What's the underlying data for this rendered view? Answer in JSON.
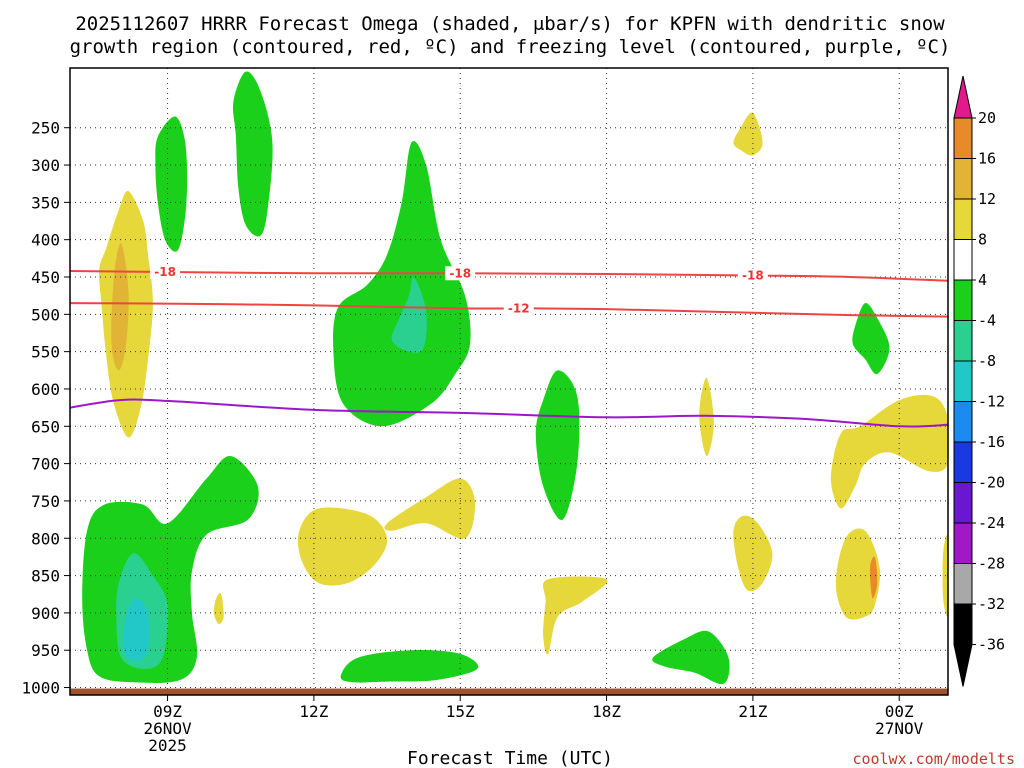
{
  "chart_data": {
    "type": "contour",
    "title_line1": "2025112607 HRRR Forecast Omega (shaded, μbar/s) for KPFN with dendritic snow",
    "title_line2": "growth region (contoured, red, ºC) and freezing level (contoured, purple, ºC)",
    "xlabel": "Forecast Time (UTC)",
    "credit": "coolwx.com/modelts",
    "x_unit": "hours since 26NOV 07Z",
    "xlim": [
      7,
      25
    ],
    "x_ticks": [
      {
        "x": 9,
        "line1": "09Z",
        "line2": "26NOV",
        "line3": "2025"
      },
      {
        "x": 12,
        "line1": "12Z",
        "line2": "",
        "line3": ""
      },
      {
        "x": 15,
        "line1": "15Z",
        "line2": "",
        "line3": ""
      },
      {
        "x": 18,
        "line1": "18Z",
        "line2": "",
        "line3": ""
      },
      {
        "x": 21,
        "line1": "21Z",
        "line2": "",
        "line3": ""
      },
      {
        "x": 24,
        "line1": "00Z",
        "line2": "27NOV",
        "line3": ""
      }
    ],
    "y_unit": "pressure (mb)",
    "ylim": [
      1010,
      170
    ],
    "y_ticks": [
      250,
      300,
      350,
      400,
      450,
      500,
      550,
      600,
      650,
      700,
      750,
      800,
      850,
      900,
      950,
      1000
    ],
    "colorbar": {
      "levels": [
        {
          "label": "20",
          "color": "#ee3333"
        },
        {
          "label": "16",
          "color": "#e88a2a"
        },
        {
          "label": "12",
          "color": "#e2b436"
        },
        {
          "label": "8",
          "color": "#e6d83a"
        },
        {
          "label": "4",
          "color": "#ffffff"
        },
        {
          "label": "-4",
          "color": "#1ad01a"
        },
        {
          "label": "-8",
          "color": "#2ad08f"
        },
        {
          "label": "-12",
          "color": "#22c8c8"
        },
        {
          "label": "-16",
          "color": "#1a8cf0"
        },
        {
          "label": "-20",
          "color": "#1a3ae0"
        },
        {
          "label": "-24",
          "color": "#6a18d0"
        },
        {
          "label": "-28",
          "color": "#a018c8"
        },
        {
          "label": "-32",
          "color": "#a8a8a8"
        },
        {
          "label": "-36",
          "color": ""
        }
      ],
      "top_color": "#e01a8a",
      "bottom_color": "#000000"
    },
    "contours": [
      {
        "name": "dgz-minus18",
        "label": "-18",
        "color": "#ee4444",
        "points": [
          [
            7,
            442
          ],
          [
            8.5,
            443
          ],
          [
            12,
            445
          ],
          [
            15,
            445
          ],
          [
            18,
            446
          ],
          [
            21,
            448
          ],
          [
            23,
            450
          ],
          [
            25,
            455
          ]
        ],
        "label_x": [
          8.95,
          15.0,
          21.0
        ]
      },
      {
        "name": "dgz-minus12",
        "label": "-12",
        "color": "#ee4444",
        "points": [
          [
            7,
            485
          ],
          [
            9.5,
            486
          ],
          [
            12,
            488
          ],
          [
            15,
            492
          ],
          [
            16.5,
            492
          ],
          [
            18,
            493
          ],
          [
            21,
            498
          ],
          [
            23,
            501
          ],
          [
            25,
            503
          ]
        ],
        "label_x": [
          16.2
        ]
      },
      {
        "name": "freezing-level",
        "label": "",
        "color": "#9a18c8",
        "points": [
          [
            7,
            625
          ],
          [
            8,
            615
          ],
          [
            9,
            616
          ],
          [
            12,
            628
          ],
          [
            15,
            632
          ],
          [
            18,
            638
          ],
          [
            20,
            636
          ],
          [
            22,
            640
          ],
          [
            24,
            650
          ],
          [
            25,
            648
          ]
        ],
        "label_x": []
      }
    ],
    "regions": [
      {
        "name": "green-09z-upper",
        "color": "#1ad01a",
        "points": [
          [
            8.8,
            262
          ],
          [
            9.15,
            235
          ],
          [
            9.35,
            265
          ],
          [
            9.4,
            320
          ],
          [
            9.35,
            375
          ],
          [
            9.2,
            415
          ],
          [
            8.95,
            400
          ],
          [
            8.8,
            350
          ],
          [
            8.75,
            300
          ]
        ]
      },
      {
        "name": "green-1030-upper",
        "color": "#1ad01a",
        "points": [
          [
            10.35,
            215
          ],
          [
            10.6,
            175
          ],
          [
            10.9,
            200
          ],
          [
            11.15,
            270
          ],
          [
            11.05,
            360
          ],
          [
            10.9,
            395
          ],
          [
            10.6,
            380
          ],
          [
            10.45,
            330
          ],
          [
            10.4,
            260
          ]
        ]
      },
      {
        "name": "green-14z-core",
        "color": "#1ad01a",
        "points": [
          [
            14,
            270
          ],
          [
            14.3,
            300
          ],
          [
            14.6,
            400
          ],
          [
            15.1,
            475
          ],
          [
            15.2,
            540
          ],
          [
            14.9,
            580
          ],
          [
            14.4,
            620
          ],
          [
            13.4,
            650
          ],
          [
            12.6,
            620
          ],
          [
            12.4,
            550
          ],
          [
            12.5,
            490
          ],
          [
            13.1,
            460
          ],
          [
            13.5,
            420
          ],
          [
            13.8,
            350
          ]
        ]
      },
      {
        "name": "green-17z",
        "color": "#1ad01a",
        "points": [
          [
            16.7,
            615
          ],
          [
            17,
            575
          ],
          [
            17.4,
            610
          ],
          [
            17.4,
            700
          ],
          [
            17.1,
            775
          ],
          [
            16.7,
            730
          ],
          [
            16.55,
            660
          ]
        ]
      },
      {
        "name": "green-09z-low",
        "color": "#1ad01a",
        "points": [
          [
            7.35,
            790
          ],
          [
            7.7,
            755
          ],
          [
            8.5,
            755
          ],
          [
            9,
            780
          ],
          [
            9.8,
            720
          ],
          [
            10.3,
            690
          ],
          [
            10.85,
            730
          ],
          [
            10.65,
            775
          ],
          [
            9.8,
            795
          ],
          [
            9.5,
            845
          ],
          [
            9.5,
            900
          ],
          [
            9.6,
            960
          ],
          [
            9.25,
            990
          ],
          [
            8.3,
            993
          ],
          [
            7.6,
            985
          ],
          [
            7.35,
            950
          ],
          [
            7.25,
            880
          ]
        ]
      },
      {
        "name": "green-14z-low",
        "color": "#1ad01a",
        "points": [
          [
            12.55,
            985
          ],
          [
            12.9,
            960
          ],
          [
            14,
            950
          ],
          [
            15,
            955
          ],
          [
            15.35,
            975
          ],
          [
            14.5,
            990
          ],
          [
            13.5,
            992
          ],
          [
            12.8,
            993
          ]
        ]
      },
      {
        "name": "green-20z-low",
        "color": "#1ad01a",
        "points": [
          [
            18.95,
            960
          ],
          [
            19.6,
            935
          ],
          [
            20.1,
            925
          ],
          [
            20.5,
            960
          ],
          [
            20.4,
            995
          ],
          [
            19.8,
            980
          ],
          [
            19.2,
            972
          ]
        ]
      },
      {
        "name": "green-2330",
        "color": "#1ad01a",
        "points": [
          [
            23.3,
            485
          ],
          [
            23.55,
            505
          ],
          [
            23.8,
            545
          ],
          [
            23.55,
            580
          ],
          [
            23.3,
            560
          ],
          [
            23.05,
            540
          ],
          [
            23.1,
            515
          ]
        ]
      },
      {
        "name": "teal-14z",
        "color": "#2ad08f",
        "points": [
          [
            13.95,
            475
          ],
          [
            14.05,
            450
          ],
          [
            14.3,
            495
          ],
          [
            14.25,
            545
          ],
          [
            13.95,
            550
          ],
          [
            13.6,
            535
          ],
          [
            13.75,
            505
          ]
        ]
      },
      {
        "name": "teal-09z-low",
        "color": "#2ad08f",
        "points": [
          [
            8.0,
            860
          ],
          [
            8.3,
            820
          ],
          [
            8.7,
            850
          ],
          [
            9.0,
            890
          ],
          [
            8.9,
            960
          ],
          [
            8.5,
            975
          ],
          [
            8.05,
            960
          ],
          [
            7.95,
            910
          ]
        ]
      },
      {
        "name": "cyan-09z-low",
        "color": "#22c8c8",
        "points": [
          [
            8.15,
            905
          ],
          [
            8.35,
            880
          ],
          [
            8.6,
            900
          ],
          [
            8.6,
            950
          ],
          [
            8.35,
            965
          ],
          [
            8.1,
            950
          ]
        ]
      },
      {
        "name": "yellow-08z",
        "color": "#e6d83a",
        "points": [
          [
            7.75,
            410
          ],
          [
            8.0,
            360
          ],
          [
            8.2,
            335
          ],
          [
            8.5,
            375
          ],
          [
            8.6,
            420
          ],
          [
            8.7,
            485
          ],
          [
            8.6,
            560
          ],
          [
            8.45,
            625
          ],
          [
            8.2,
            665
          ],
          [
            7.9,
            620
          ],
          [
            7.75,
            560
          ],
          [
            7.65,
            490
          ],
          [
            7.6,
            440
          ]
        ]
      },
      {
        "name": "orange-08z",
        "color": "#e2b436",
        "points": [
          [
            7.9,
            450
          ],
          [
            8.05,
            405
          ],
          [
            8.2,
            470
          ],
          [
            8.15,
            540
          ],
          [
            8.0,
            575
          ],
          [
            7.85,
            540
          ]
        ]
      },
      {
        "name": "yellow-21z-upper",
        "color": "#e6d83a",
        "points": [
          [
            20.6,
            270
          ],
          [
            20.75,
            250
          ],
          [
            21,
            230
          ],
          [
            21.2,
            270
          ],
          [
            21,
            287
          ],
          [
            20.75,
            280
          ]
        ]
      },
      {
        "name": "yellow-20z-small",
        "color": "#e6d83a",
        "points": [
          [
            19.9,
            635
          ],
          [
            20.05,
            585
          ],
          [
            20.2,
            645
          ],
          [
            20.05,
            690
          ]
        ]
      },
      {
        "name": "yellow-1230",
        "color": "#e6d83a",
        "points": [
          [
            11.7,
            790
          ],
          [
            12.1,
            760
          ],
          [
            13.1,
            768
          ],
          [
            13.5,
            800
          ],
          [
            13.25,
            835
          ],
          [
            12.7,
            860
          ],
          [
            12.1,
            860
          ],
          [
            11.75,
            830
          ]
        ]
      },
      {
        "name": "yellow-1430",
        "color": "#e6d83a",
        "points": [
          [
            13.5,
            780
          ],
          [
            14.3,
            745
          ],
          [
            15,
            720
          ],
          [
            15.3,
            750
          ],
          [
            15.1,
            800
          ],
          [
            14.3,
            780
          ],
          [
            13.6,
            790
          ]
        ]
      },
      {
        "name": "yellow-17z-low",
        "color": "#e6d83a",
        "points": [
          [
            16.8,
            855
          ],
          [
            18,
            855
          ],
          [
            17.5,
            885
          ],
          [
            17.0,
            905
          ],
          [
            16.8,
            955
          ],
          [
            16.7,
            930
          ],
          [
            16.75,
            885
          ]
        ]
      },
      {
        "name": "yellow-21z-low",
        "color": "#e6d83a",
        "points": [
          [
            20.6,
            790
          ],
          [
            20.8,
            770
          ],
          [
            21.1,
            780
          ],
          [
            21.4,
            820
          ],
          [
            21.2,
            860
          ],
          [
            20.9,
            870
          ],
          [
            20.7,
            840
          ]
        ]
      },
      {
        "name": "yellow-2330-low",
        "color": "#e6d83a",
        "points": [
          [
            22.7,
            860
          ],
          [
            22.9,
            800
          ],
          [
            23.3,
            790
          ],
          [
            23.6,
            840
          ],
          [
            23.5,
            890
          ],
          [
            23.3,
            905
          ],
          [
            22.9,
            905
          ]
        ]
      },
      {
        "name": "yellow-2330-ridge",
        "color": "#e6d83a",
        "points": [
          [
            22.6,
            720
          ],
          [
            22.8,
            660
          ],
          [
            23.2,
            650
          ],
          [
            24.0,
            615
          ],
          [
            24.7,
            610
          ],
          [
            25,
            640
          ],
          [
            25,
            700
          ],
          [
            24.6,
            710
          ],
          [
            23.8,
            685
          ],
          [
            23.3,
            700
          ],
          [
            23.1,
            730
          ],
          [
            22.8,
            760
          ]
        ]
      },
      {
        "name": "yellow-25z-edge",
        "color": "#e6d83a",
        "points": [
          [
            24.9,
            820
          ],
          [
            25,
            800
          ],
          [
            25,
            900
          ],
          [
            24.9,
            880
          ]
        ]
      },
      {
        "name": "orange-2330",
        "color": "#e88a2a",
        "points": [
          [
            23.4,
            840
          ],
          [
            23.5,
            825
          ],
          [
            23.55,
            860
          ],
          [
            23.45,
            880
          ]
        ]
      },
      {
        "name": "yellow-10z-dot",
        "color": "#e6d83a",
        "points": [
          [
            10.0,
            880
          ],
          [
            10.1,
            875
          ],
          [
            10.15,
            905
          ],
          [
            10.05,
            915
          ],
          [
            9.95,
            900
          ]
        ]
      }
    ],
    "ground": {
      "color": "#a0522d",
      "top_mb": 1000
    }
  }
}
